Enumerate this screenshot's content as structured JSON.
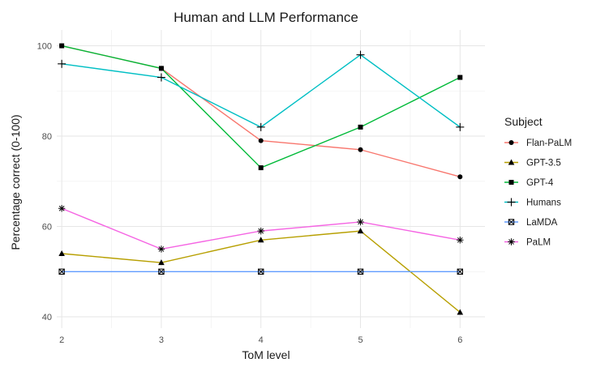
{
  "chart_data": {
    "type": "line",
    "title": "Human and LLM Performance",
    "xlabel": "ToM level",
    "ylabel": "Percentage correct (0-100)",
    "x": [
      2,
      3,
      4,
      5,
      6
    ],
    "xlim": [
      1.95,
      6.25
    ],
    "ylim": [
      37.5,
      103.5
    ],
    "x_ticks": [
      2,
      3,
      4,
      5,
      6
    ],
    "y_ticks": [
      40,
      60,
      80,
      100
    ],
    "grid": true,
    "legend": {
      "title": "Subject",
      "position": "right"
    },
    "series": [
      {
        "name": "Flan-PaLM",
        "color": "#F8766D",
        "marker": "circle",
        "values": [
          100,
          95,
          79,
          77,
          71
        ]
      },
      {
        "name": "GPT-3.5",
        "color": "#B79F00",
        "marker": "triangle",
        "values": [
          54,
          52,
          57,
          59,
          41
        ]
      },
      {
        "name": "GPT-4",
        "color": "#00BA38",
        "marker": "square",
        "values": [
          100,
          95,
          73,
          82,
          93
        ]
      },
      {
        "name": "Humans",
        "color": "#00BFC4",
        "marker": "plus",
        "values": [
          96,
          93,
          82,
          98,
          82
        ]
      },
      {
        "name": "LaMDA",
        "color": "#619CFF",
        "marker": "square-cross",
        "values": [
          50,
          50,
          50,
          50,
          50
        ]
      },
      {
        "name": "PaLM",
        "color": "#F564E3",
        "marker": "star",
        "values": [
          64,
          55,
          59,
          61,
          57
        ]
      }
    ]
  }
}
